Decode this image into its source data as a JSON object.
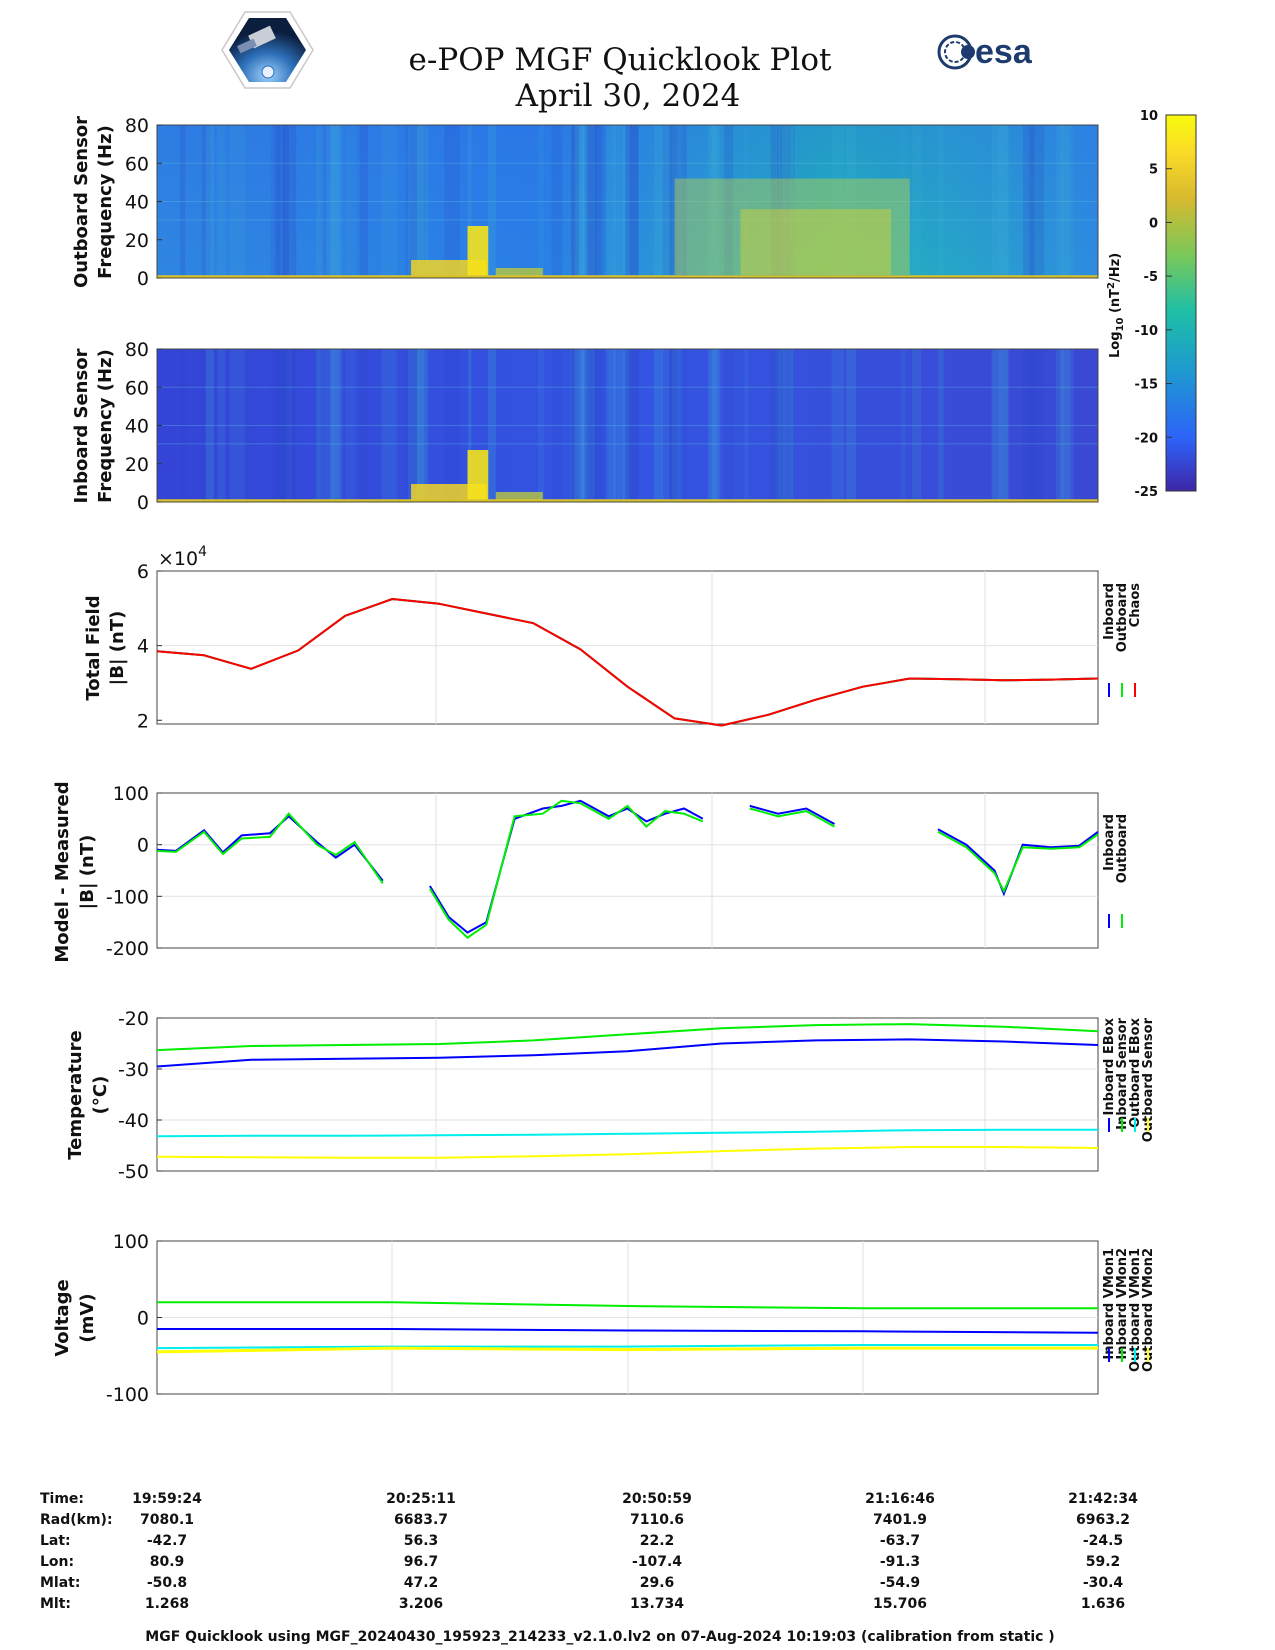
{
  "title_line1": "e-POP MGF Quicklook Plot",
  "title_line2": "April 30, 2024",
  "logo_esa_text": "esa",
  "colorbar": {
    "label_log": "Log",
    "label_sub": "10",
    "label_unit_a": " (nT",
    "label_sup": "2",
    "label_unit_b": "/Hz)",
    "ticks": [
      "10",
      "5",
      "0",
      "-5",
      "-10",
      "-15",
      "-20",
      "-25"
    ],
    "range": [
      -25,
      10
    ],
    "colors": [
      "#3e26a8",
      "#2d63f8",
      "#1e9ad0",
      "#1fbfa5",
      "#75c85c",
      "#d8ba2e",
      "#fadb28",
      "#f9fb0e"
    ]
  },
  "panels": {
    "outboard": {
      "ylabel1": "Outboard Sensor",
      "ylabel2": "Frequency (Hz)",
      "yticks": [
        "80",
        "60",
        "40",
        "20",
        "0"
      ]
    },
    "inboard": {
      "ylabel1": "Inboard Sensor",
      "ylabel2": "Frequency (Hz)",
      "yticks": [
        "80",
        "60",
        "40",
        "20",
        "0"
      ]
    },
    "total": {
      "ylabel1": "Total Field",
      "ylabel2": "|B| (nT)",
      "yticks": [
        "6",
        "4",
        "2"
      ],
      "exponent_base": "×10",
      "exponent_power": "4",
      "legend": [
        "Inboard",
        "Outboard",
        "Chaos"
      ]
    },
    "model": {
      "ylabel1": "Model - Measured",
      "ylabel2": "|B| (nT)",
      "yticks": [
        "100",
        "0",
        "-100",
        "-200"
      ],
      "legend": [
        "Inboard",
        "Outboard"
      ]
    },
    "temperature": {
      "ylabel1": "Temperature",
      "ylabel2": "(°C)",
      "yticks": [
        "-20",
        "-30",
        "-40",
        "-50"
      ],
      "legend": [
        "Inboard EBox",
        "Inboard Sensor",
        "Outboard EBox",
        "Outboard Sensor"
      ]
    },
    "voltage": {
      "ylabel1": "Voltage",
      "ylabel2": "(mV)",
      "yticks": [
        "100",
        "0",
        "-100"
      ],
      "legend": [
        "Inboard VMon1",
        "Inboard VMon2",
        "Outboard VMon1",
        "Outboard VMon2"
      ]
    }
  },
  "info_table": {
    "row_labels": [
      "Time:",
      "Rad(km):",
      "Lat:",
      "Lon:",
      "Mlat:",
      "Mlt:"
    ],
    "columns": [
      [
        "19:59:24",
        "7080.1",
        "-42.7",
        "80.9",
        "-50.8",
        "1.268"
      ],
      [
        "20:25:11",
        "6683.7",
        "56.3",
        "96.7",
        "47.2",
        "3.206"
      ],
      [
        "20:50:59",
        "7110.6",
        "22.2",
        "-107.4",
        "29.6",
        "13.734"
      ],
      [
        "21:16:46",
        "7401.9",
        "-63.7",
        "-91.3",
        "-54.9",
        "15.706"
      ],
      [
        "21:42:34",
        "6963.2",
        "-24.5",
        "59.2",
        "-30.4",
        "1.636"
      ]
    ]
  },
  "footer": "MGF Quicklook using MGF_20240430_195923_214233_v2.1.0.lv2 on 07-Aug-2024 10:19:03 (calibration from static )",
  "chart_data": [
    {
      "type": "heatmap",
      "name": "Outboard Sensor spectrogram",
      "ylabel": "Outboard Sensor Frequency (Hz)",
      "ylim": [
        0,
        80
      ],
      "clim": [
        -25,
        10
      ]
    },
    {
      "type": "heatmap",
      "name": "Inboard Sensor spectrogram",
      "ylabel": "Inboard Sensor Frequency (Hz)",
      "ylim": [
        0,
        80
      ],
      "clim": [
        -25,
        10
      ]
    },
    {
      "type": "line",
      "ylabel": "Total Field |B| (nT)",
      "ylim": [
        19000,
        60000
      ],
      "x_fraction": [
        0,
        0.05,
        0.1,
        0.15,
        0.2,
        0.25,
        0.3,
        0.35,
        0.4,
        0.45,
        0.5,
        0.55,
        0.6,
        0.65,
        0.7,
        0.75,
        0.8,
        0.85,
        0.9,
        0.95,
        1.0
      ],
      "series": [
        {
          "name": "Inboard",
          "color": "#0000ff",
          "values": [
            38500,
            37400,
            33800,
            38700,
            48000,
            52500,
            51200,
            48600,
            46000,
            39000,
            29000,
            20500,
            18600,
            21500,
            25500,
            29000,
            31200,
            31000,
            30700,
            30900,
            31200
          ]
        },
        {
          "name": "Outboard",
          "color": "#00ee00",
          "values": [
            38500,
            37400,
            33800,
            38700,
            48000,
            52500,
            51200,
            48600,
            46000,
            39000,
            29000,
            20500,
            18600,
            21500,
            25500,
            29000,
            31200,
            31000,
            30700,
            30900,
            31200
          ]
        },
        {
          "name": "Chaos",
          "color": "#ff0000",
          "values": [
            38500,
            37400,
            33800,
            38700,
            48000,
            52500,
            51200,
            48600,
            46000,
            39000,
            29000,
            20500,
            18600,
            21500,
            25500,
            29000,
            31200,
            31000,
            30700,
            30900,
            31200
          ]
        }
      ]
    },
    {
      "type": "line",
      "ylabel": "Model - Measured |B| (nT)",
      "ylim": [
        -200,
        100
      ],
      "series": [
        {
          "name": "Inboard",
          "color": "#0000ff",
          "segments": [
            [
              [
                0.0,
                -10
              ],
              [
                0.02,
                -12
              ],
              [
                0.05,
                28
              ],
              [
                0.07,
                -15
              ],
              [
                0.09,
                18
              ],
              [
                0.12,
                22
              ],
              [
                0.14,
                55
              ],
              [
                0.17,
                5
              ],
              [
                0.19,
                -25
              ],
              [
                0.21,
                0
              ],
              [
                0.24,
                -70
              ]
            ],
            [
              [
                0.29,
                -80
              ],
              [
                0.31,
                -140
              ],
              [
                0.33,
                -170
              ],
              [
                0.35,
                -150
              ],
              [
                0.38,
                50
              ],
              [
                0.41,
                70
              ],
              [
                0.43,
                75
              ],
              [
                0.45,
                85
              ],
              [
                0.48,
                55
              ],
              [
                0.5,
                70
              ],
              [
                0.52,
                45
              ],
              [
                0.54,
                60
              ],
              [
                0.56,
                70
              ],
              [
                0.58,
                50
              ]
            ],
            [
              [
                0.63,
                75
              ],
              [
                0.66,
                60
              ],
              [
                0.69,
                70
              ],
              [
                0.72,
                40
              ]
            ],
            [
              [
                0.83,
                30
              ],
              [
                0.86,
                0
              ],
              [
                0.89,
                -50
              ],
              [
                0.9,
                -95
              ],
              [
                0.92,
                0
              ],
              [
                0.95,
                -5
              ],
              [
                0.98,
                -2
              ],
              [
                1.0,
                25
              ]
            ]
          ]
        },
        {
          "name": "Outboard",
          "color": "#00ee00",
          "segments": [
            [
              [
                0.0,
                -12
              ],
              [
                0.02,
                -14
              ],
              [
                0.05,
                25
              ],
              [
                0.07,
                -18
              ],
              [
                0.09,
                12
              ],
              [
                0.12,
                15
              ],
              [
                0.14,
                60
              ],
              [
                0.17,
                0
              ],
              [
                0.19,
                -20
              ],
              [
                0.21,
                5
              ],
              [
                0.24,
                -75
              ]
            ],
            [
              [
                0.29,
                -85
              ],
              [
                0.31,
                -145
              ],
              [
                0.33,
                -180
              ],
              [
                0.35,
                -155
              ],
              [
                0.38,
                55
              ],
              [
                0.41,
                60
              ],
              [
                0.43,
                85
              ],
              [
                0.45,
                80
              ],
              [
                0.48,
                50
              ],
              [
                0.5,
                75
              ],
              [
                0.52,
                35
              ],
              [
                0.54,
                65
              ],
              [
                0.56,
                60
              ],
              [
                0.58,
                45
              ]
            ],
            [
              [
                0.63,
                70
              ],
              [
                0.66,
                55
              ],
              [
                0.69,
                65
              ],
              [
                0.72,
                35
              ]
            ],
            [
              [
                0.83,
                25
              ],
              [
                0.86,
                -5
              ],
              [
                0.89,
                -55
              ],
              [
                0.9,
                -90
              ],
              [
                0.92,
                -5
              ],
              [
                0.95,
                -8
              ],
              [
                0.98,
                -5
              ],
              [
                1.0,
                20
              ]
            ]
          ]
        }
      ]
    },
    {
      "type": "line",
      "ylabel": "Temperature (°C)",
      "ylim": [
        -50,
        -20
      ],
      "x_fraction": [
        0,
        0.1,
        0.2,
        0.3,
        0.4,
        0.5,
        0.6,
        0.7,
        0.8,
        0.9,
        1.0
      ],
      "series": [
        {
          "name": "Inboard EBox",
          "color": "#0000ff",
          "values": [
            -29.5,
            -28.2,
            -28.0,
            -27.8,
            -27.3,
            -26.5,
            -25.0,
            -24.4,
            -24.2,
            -24.6,
            -25.3
          ]
        },
        {
          "name": "Inboard Sensor",
          "color": "#00ee00",
          "values": [
            -26.3,
            -25.5,
            -25.3,
            -25.1,
            -24.4,
            -23.2,
            -22.0,
            -21.4,
            -21.2,
            -21.7,
            -22.6
          ]
        },
        {
          "name": "Outboard EBox",
          "color": "#00eeee",
          "values": [
            -43.2,
            -43.1,
            -43.1,
            -43.0,
            -42.9,
            -42.7,
            -42.5,
            -42.3,
            -42.0,
            -41.9,
            -41.9
          ]
        },
        {
          "name": "Outboard Sensor",
          "color": "#ffff00",
          "values": [
            -47.2,
            -47.3,
            -47.4,
            -47.4,
            -47.1,
            -46.7,
            -46.1,
            -45.6,
            -45.3,
            -45.3,
            -45.5
          ]
        }
      ]
    },
    {
      "type": "line",
      "ylabel": "Voltage (mV)",
      "ylim": [
        -100,
        100
      ],
      "x_fraction": [
        0,
        0.25,
        0.5,
        0.75,
        1.0
      ],
      "series": [
        {
          "name": "Inboard VMon1",
          "color": "#0000ff",
          "values": [
            -15,
            -15,
            -17,
            -18,
            -20
          ]
        },
        {
          "name": "Inboard VMon2",
          "color": "#00ee00",
          "values": [
            20,
            20,
            15,
            12,
            12
          ]
        },
        {
          "name": "Outboard VMon1",
          "color": "#00eeee",
          "values": [
            -40,
            -38,
            -38,
            -36,
            -36
          ]
        },
        {
          "name": "Outboard VMon2",
          "color": "#ffff00",
          "values": [
            -45,
            -40,
            -42,
            -40,
            -40
          ]
        }
      ]
    }
  ]
}
